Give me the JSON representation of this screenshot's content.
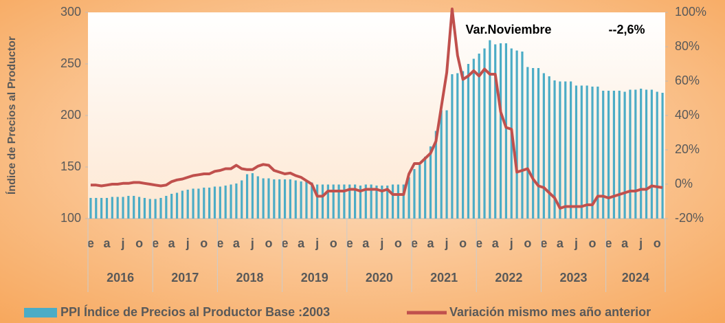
{
  "chart_data": {
    "type": "bar_line",
    "y_axis_label": "Índice de Precios al Productor",
    "annotation": "Var.Noviembre",
    "annotation_value": "--2,6%",
    "categories": [
      "e",
      null,
      null,
      "a",
      null,
      null,
      "j",
      null,
      null,
      "o",
      null,
      null,
      "e",
      null,
      null,
      "a",
      null,
      null,
      "j",
      null,
      null,
      "o",
      null,
      null,
      "e",
      null,
      null,
      "a",
      null,
      null,
      "j",
      null,
      null,
      "o",
      null,
      null,
      "e",
      null,
      null,
      "a",
      null,
      null,
      "j",
      null,
      null,
      "o",
      null,
      null,
      "e",
      null,
      null,
      "a",
      null,
      null,
      "j",
      null,
      null,
      "o",
      null,
      null,
      "e",
      null,
      null,
      "a",
      null,
      null,
      "j",
      null,
      null,
      "o",
      null,
      null,
      "e",
      null,
      null,
      "a",
      null,
      null,
      "j",
      null,
      null,
      "o",
      null,
      null,
      "e",
      null,
      null,
      "a",
      null,
      null,
      "j",
      null,
      null,
      "o",
      null,
      null,
      "e",
      null,
      null,
      "a",
      null,
      null,
      "j",
      null,
      null,
      "o",
      null
    ],
    "year_groups": [
      "2016",
      "2017",
      "2018",
      "2019",
      "2020",
      "2021",
      "2022",
      "2023",
      "2024"
    ],
    "series": [
      {
        "name": "PPI Índice de Precios al Productor Base :2003",
        "color": "#4bacc6",
        "type": "bar",
        "values": [
          120,
          120,
          120,
          120,
          121,
          121,
          121,
          122,
          122,
          121,
          120,
          119,
          119,
          120,
          122,
          124,
          125,
          127,
          128,
          129,
          129,
          130,
          130,
          131,
          131,
          132,
          133,
          134,
          137,
          143,
          144,
          141,
          139,
          139,
          138,
          138,
          138,
          138,
          137,
          136,
          137,
          135,
          133,
          133,
          133,
          133,
          133,
          133,
          133,
          133,
          132,
          133,
          133,
          132,
          132,
          132,
          133,
          133,
          133,
          140,
          148,
          152,
          160,
          170,
          185,
          205,
          205,
          240,
          241,
          243,
          250,
          255,
          260,
          265,
          273,
          269,
          270,
          270,
          265,
          263,
          262,
          247,
          246,
          246,
          241,
          238,
          234,
          233,
          233,
          233,
          229,
          229,
          229,
          228,
          228,
          224,
          224,
          224,
          224,
          223,
          225,
          225,
          226,
          225,
          225,
          223,
          222
        ]
      },
      {
        "name": "Variación mismo mes año anterior",
        "color": "#c0504d",
        "type": "line",
        "axis": "y2",
        "values": [
          -0.5,
          -0.5,
          -1,
          -0.5,
          0,
          0,
          0.5,
          0.5,
          1,
          1,
          0.5,
          0,
          -0.5,
          -1,
          -0.5,
          1.5,
          2.5,
          3,
          4,
          5,
          5.5,
          6,
          6,
          7.5,
          8,
          9,
          9,
          11,
          9,
          8.5,
          8.5,
          10.5,
          11.5,
          11,
          8,
          7,
          6,
          6.5,
          5,
          4,
          2,
          0,
          -7,
          -7,
          -4,
          -4,
          -4,
          -4,
          -3,
          -3,
          -4,
          -3,
          -3,
          -3,
          -4,
          -3,
          -6,
          -6,
          -6,
          6,
          12,
          12,
          15,
          18,
          25,
          45,
          65,
          102,
          75,
          61,
          63,
          66,
          63,
          67,
          64,
          64,
          42,
          33,
          32,
          7,
          8,
          9,
          3,
          -1,
          -2,
          -5,
          -8,
          -14,
          -13,
          -13,
          -13,
          -13,
          -12,
          -12,
          -7,
          -7,
          -8,
          -7,
          -6,
          -5,
          -4,
          -4,
          -3,
          -3,
          -1,
          -1.5,
          -2
        ]
      }
    ],
    "ylim": [
      100,
      300
    ],
    "yticks": [
      100,
      150,
      200,
      250,
      300
    ],
    "y2lim": [
      -20,
      100
    ],
    "y2ticks": [
      {
        "value": -20,
        "label": "-20%"
      },
      {
        "value": 0,
        "label": "0%"
      },
      {
        "value": 20,
        "label": "20%"
      },
      {
        "value": 40,
        "label": "40%"
      },
      {
        "value": 60,
        "label": "60%"
      },
      {
        "value": 80,
        "label": "80%"
      },
      {
        "value": 100,
        "label": "100%"
      }
    ],
    "legend": "bottom"
  }
}
